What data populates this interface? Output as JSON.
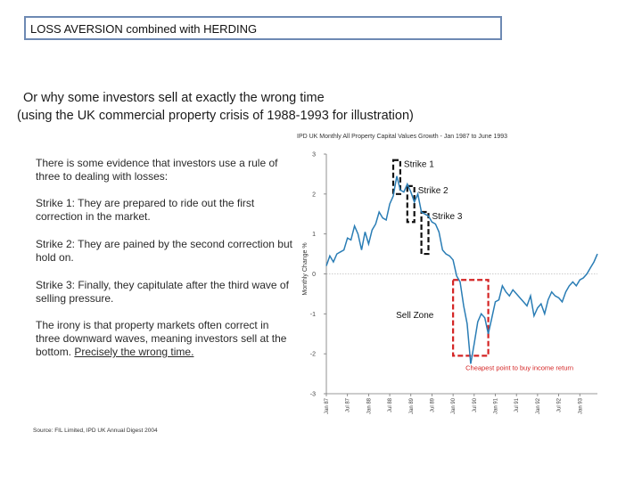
{
  "title": "LOSS AVERSION combined with HERDING",
  "subtitle_line1": "Or why some investors sell at exactly the wrong time",
  "subtitle_line2": "(using the UK commercial property crisis of 1988-1993 for illustration)",
  "paragraphs": {
    "p1": "There is some evidence that investors use a rule of three to dealing with losses:",
    "p2": "Strike 1: They are prepared to ride out the first correction in the market.",
    "p3": "Strike 2: They are pained by the second correction but hold on.",
    "p4": "Strike 3: Finally, they capitulate after the third wave of selling pressure.",
    "p5_text": "The irony is that property markets often correct in three downward waves, meaning investors sell at the bottom. ",
    "p5_emphasis": "Precisely the wrong time."
  },
  "source": "Source: FIL Limited, IPD UK Annual Digest 2004",
  "colors": {
    "line": "#2a7db5",
    "strike_box": "#111111",
    "sell_zone": "#d42424",
    "title_border": "#6d89b3"
  },
  "chart_data": {
    "type": "line",
    "title": "IPD UK Monthly All Property Capital Values Growth - Jan 1987 to June 1993",
    "ylabel": "Monthly Change %",
    "xlabel": "",
    "ylim": [
      -3,
      3
    ],
    "yticks": [
      3,
      2,
      1,
      0,
      -1,
      -2,
      -3
    ],
    "x_range": [
      "1987-01",
      "1993-06"
    ],
    "x_ticks": [
      {
        "label": "Jan 87",
        "date": "1987-01"
      },
      {
        "label": "Jul 87",
        "date": "1987-07"
      },
      {
        "label": "Jan 88",
        "date": "1988-01"
      },
      {
        "label": "Jul 88",
        "date": "1988-07"
      },
      {
        "label": "Jan 89",
        "date": "1989-01"
      },
      {
        "label": "Jul 89",
        "date": "1989-07"
      },
      {
        "label": "Jan 90",
        "date": "1990-01"
      },
      {
        "label": "Jul 90",
        "date": "1990-07"
      },
      {
        "label": "Jan 91",
        "date": "1991-01"
      },
      {
        "label": "Jul 91",
        "date": "1991-07"
      },
      {
        "label": "Jan 92",
        "date": "1992-01"
      },
      {
        "label": "Jul 92",
        "date": "1992-07"
      },
      {
        "label": "Jan 93",
        "date": "1993-01"
      }
    ],
    "series": [
      {
        "values": [
          {
            "x": "1987-01",
            "y": 0.2
          },
          {
            "x": "1987-02",
            "y": 0.45
          },
          {
            "x": "1987-03",
            "y": 0.3
          },
          {
            "x": "1987-04",
            "y": 0.5
          },
          {
            "x": "1987-05",
            "y": 0.55
          },
          {
            "x": "1987-06",
            "y": 0.6
          },
          {
            "x": "1987-07",
            "y": 0.9
          },
          {
            "x": "1987-08",
            "y": 0.85
          },
          {
            "x": "1987-09",
            "y": 1.2
          },
          {
            "x": "1987-10",
            "y": 1.0
          },
          {
            "x": "1987-11",
            "y": 0.6
          },
          {
            "x": "1987-12",
            "y": 1.05
          },
          {
            "x": "1988-01",
            "y": 0.75
          },
          {
            "x": "1988-02",
            "y": 1.1
          },
          {
            "x": "1988-03",
            "y": 1.25
          },
          {
            "x": "1988-04",
            "y": 1.55
          },
          {
            "x": "1988-05",
            "y": 1.4
          },
          {
            "x": "1988-06",
            "y": 1.35
          },
          {
            "x": "1988-07",
            "y": 1.75
          },
          {
            "x": "1988-08",
            "y": 1.95
          },
          {
            "x": "1988-09",
            "y": 2.45
          },
          {
            "x": "1988-10",
            "y": 2.1
          },
          {
            "x": "1988-11",
            "y": 2.05
          },
          {
            "x": "1988-12",
            "y": 2.25
          },
          {
            "x": "1989-01",
            "y": 2.05
          },
          {
            "x": "1989-02",
            "y": 1.8
          },
          {
            "x": "1989-03",
            "y": 2.0
          },
          {
            "x": "1989-04",
            "y": 1.55
          },
          {
            "x": "1989-05",
            "y": 1.5
          },
          {
            "x": "1989-06",
            "y": 1.45
          },
          {
            "x": "1989-07",
            "y": 1.3
          },
          {
            "x": "1989-08",
            "y": 1.25
          },
          {
            "x": "1989-09",
            "y": 1.05
          },
          {
            "x": "1989-10",
            "y": 0.6
          },
          {
            "x": "1989-11",
            "y": 0.5
          },
          {
            "x": "1989-12",
            "y": 0.45
          },
          {
            "x": "1990-01",
            "y": 0.35
          },
          {
            "x": "1990-02",
            "y": -0.05
          },
          {
            "x": "1990-03",
            "y": -0.2
          },
          {
            "x": "1990-04",
            "y": -0.8
          },
          {
            "x": "1990-05",
            "y": -1.25
          },
          {
            "x": "1990-06",
            "y": -2.25
          },
          {
            "x": "1990-07",
            "y": -1.75
          },
          {
            "x": "1990-08",
            "y": -1.2
          },
          {
            "x": "1990-09",
            "y": -1.0
          },
          {
            "x": "1990-10",
            "y": -1.1
          },
          {
            "x": "1990-11",
            "y": -1.5
          },
          {
            "x": "1990-12",
            "y": -1.1
          },
          {
            "x": "1991-01",
            "y": -0.7
          },
          {
            "x": "1991-02",
            "y": -0.65
          },
          {
            "x": "1991-03",
            "y": -0.3
          },
          {
            "x": "1991-04",
            "y": -0.45
          },
          {
            "x": "1991-05",
            "y": -0.55
          },
          {
            "x": "1991-06",
            "y": -0.4
          },
          {
            "x": "1991-07",
            "y": -0.5
          },
          {
            "x": "1991-08",
            "y": -0.6
          },
          {
            "x": "1991-09",
            "y": -0.7
          },
          {
            "x": "1991-10",
            "y": -0.8
          },
          {
            "x": "1991-11",
            "y": -0.55
          },
          {
            "x": "1991-12",
            "y": -1.05
          },
          {
            "x": "1992-01",
            "y": -0.85
          },
          {
            "x": "1992-02",
            "y": -0.75
          },
          {
            "x": "1992-03",
            "y": -1.0
          },
          {
            "x": "1992-04",
            "y": -0.65
          },
          {
            "x": "1992-05",
            "y": -0.45
          },
          {
            "x": "1992-06",
            "y": -0.55
          },
          {
            "x": "1992-07",
            "y": -0.6
          },
          {
            "x": "1992-08",
            "y": -0.7
          },
          {
            "x": "1992-09",
            "y": -0.45
          },
          {
            "x": "1992-10",
            "y": -0.3
          },
          {
            "x": "1992-11",
            "y": -0.2
          },
          {
            "x": "1992-12",
            "y": -0.3
          },
          {
            "x": "1993-01",
            "y": -0.15
          },
          {
            "x": "1993-02",
            "y": -0.1
          },
          {
            "x": "1993-03",
            "y": 0.0
          },
          {
            "x": "1993-04",
            "y": 0.15
          },
          {
            "x": "1993-05",
            "y": 0.3
          },
          {
            "x": "1993-06",
            "y": 0.5
          }
        ]
      }
    ],
    "annotations": {
      "strike1": "Strike 1",
      "strike2": "Strike 2",
      "strike3": "Strike 3",
      "sell_zone": "Sell Zone",
      "cheapest": "Cheapest point to buy income return"
    },
    "strike_boxes": [
      {
        "label_key": "strike1",
        "x_start": "1988-08",
        "x_end": "1988-10",
        "y_low": 2.0,
        "y_high": 2.85
      },
      {
        "label_key": "strike2",
        "x_start": "1988-12",
        "x_end": "1989-02",
        "y_low": 1.3,
        "y_high": 2.2
      },
      {
        "label_key": "strike3",
        "x_start": "1989-04",
        "x_end": "1989-06",
        "y_low": 0.5,
        "y_high": 1.55
      }
    ],
    "sell_zone_box": {
      "x_start": "1990-01",
      "x_end": "1990-11",
      "y_low": -2.05,
      "y_high": -0.15
    }
  }
}
